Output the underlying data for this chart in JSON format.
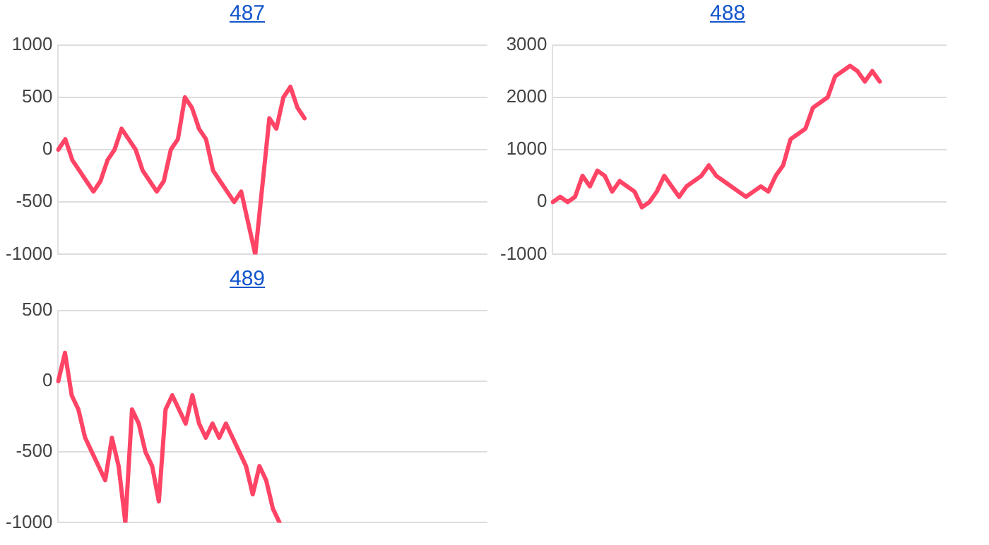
{
  "chart_data": [
    {
      "type": "line",
      "title": "487",
      "categories": [
        null,
        null,
        null,
        null,
        null,
        null,
        null,
        null,
        null,
        null,
        null,
        null,
        null,
        null,
        null,
        null,
        null,
        null,
        null,
        null,
        null,
        null,
        null,
        null,
        null,
        null,
        null,
        null,
        null,
        null,
        null,
        null,
        null,
        null,
        null,
        null,
        null,
        null,
        null,
        null,
        null,
        null,
        null,
        null,
        null,
        null,
        null,
        null,
        null,
        null,
        null,
        null,
        null,
        null,
        null,
        null,
        null,
        null,
        null,
        null,
        null,
        null
      ],
      "series": [
        {
          "color": "#ff4466",
          "values": [
            0,
            100,
            -100,
            -200,
            -300,
            -400,
            -300,
            -100,
            0,
            200,
            100,
            0,
            -200,
            -300,
            -400,
            -300,
            0,
            100,
            500,
            400,
            200,
            100,
            -200,
            -300,
            -400,
            -500,
            -400,
            -700,
            -1000,
            -350,
            300,
            200,
            500,
            600,
            400,
            300,
            null,
            null,
            null,
            null,
            null,
            null,
            null,
            null,
            null,
            null,
            null,
            null,
            null,
            null,
            null,
            null,
            null,
            null,
            null,
            null,
            null,
            null,
            null,
            null,
            null,
            null
          ]
        }
      ],
      "ylim": [
        -1000,
        1000
      ],
      "yticks": [
        -1000,
        -500,
        0,
        500,
        1000
      ],
      "grid": "y",
      "tick_labels": "y",
      "marker": "none",
      "line_style": "solid"
    },
    {
      "type": "line",
      "title": "488",
      "categories": [
        null,
        null,
        null,
        null,
        null,
        null,
        null,
        null,
        null,
        null,
        null,
        null,
        null,
        null,
        null,
        null,
        null,
        null,
        null,
        null,
        null,
        null,
        null,
        null,
        null,
        null,
        null,
        null,
        null,
        null,
        null,
        null,
        null,
        null,
        null,
        null,
        null,
        null,
        null,
        null,
        null,
        null,
        null,
        null,
        null,
        null,
        null,
        null,
        null,
        null,
        null,
        null,
        null,
        null
      ],
      "series": [
        {
          "color": "#ff4466",
          "values": [
            0,
            100,
            0,
            100,
            500,
            300,
            600,
            500,
            200,
            400,
            300,
            200,
            -100,
            0,
            200,
            500,
            300,
            100,
            300,
            400,
            500,
            700,
            500,
            400,
            300,
            200,
            100,
            200,
            300,
            200,
            500,
            700,
            1200,
            1300,
            1400,
            1800,
            1900,
            2000,
            2400,
            2500,
            2600,
            2500,
            2300,
            2500,
            2300,
            null,
            null,
            null,
            null,
            null,
            null,
            null,
            null,
            null
          ]
        }
      ],
      "ylim": [
        -1000,
        3000
      ],
      "yticks": [
        -1000,
        0,
        1000,
        2000,
        3000
      ],
      "grid": "y",
      "tick_labels": "y",
      "marker": "none",
      "line_style": "solid"
    },
    {
      "type": "line",
      "title": "489",
      "categories": [
        null,
        null,
        null,
        null,
        null,
        null,
        null,
        null,
        null,
        null,
        null,
        null,
        null,
        null,
        null,
        null,
        null,
        null,
        null,
        null,
        null,
        null,
        null,
        null,
        null,
        null,
        null,
        null,
        null,
        null,
        null,
        null,
        null,
        null,
        null,
        null,
        null,
        null,
        null,
        null,
        null,
        null,
        null,
        null,
        null,
        null,
        null,
        null,
        null,
        null,
        null,
        null,
        null,
        null,
        null,
        null,
        null,
        null,
        null,
        null,
        null,
        null,
        null,
        null,
        null
      ],
      "series": [
        {
          "color": "#ff4466",
          "values": [
            0,
            200,
            -100,
            -200,
            -400,
            -500,
            -600,
            -700,
            -400,
            -600,
            -1000,
            -200,
            -300,
            -500,
            -600,
            -850,
            -200,
            -100,
            -200,
            -300,
            -100,
            -300,
            -400,
            -300,
            -400,
            -300,
            -400,
            -500,
            -600,
            -800,
            -600,
            -700,
            -900,
            -1000,
            null,
            null,
            null,
            null,
            null,
            null,
            null,
            null,
            null,
            null,
            null,
            null,
            null,
            null,
            null,
            null,
            null,
            null,
            null,
            null,
            null,
            null,
            null,
            null,
            null,
            null,
            null,
            null,
            null,
            null,
            null
          ]
        }
      ],
      "ylim": [
        -1000,
        500
      ],
      "yticks": [
        -1000,
        -500,
        0,
        500
      ],
      "grid": "y",
      "tick_labels": "y",
      "marker": "none",
      "line_style": "solid"
    }
  ]
}
